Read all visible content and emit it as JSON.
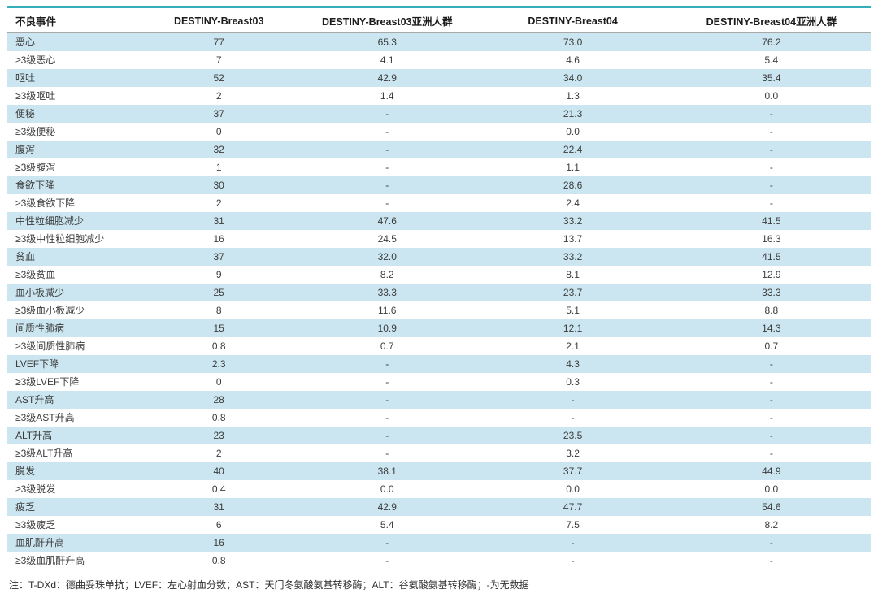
{
  "colors": {
    "accent_teal": "#35adbb",
    "bottom_rule_blue": "#8cc8db",
    "row_shade_blue": "#cbe6f0"
  },
  "table": {
    "columns": [
      "不良事件",
      "DESTINY-Breast03",
      "DESTINY-Breast03亚洲人群",
      "DESTINY-Breast04",
      "DESTINY-Breast04亚洲人群"
    ],
    "rows": [
      {
        "label": "恶心",
        "values": [
          "77",
          "65.3",
          "73.0",
          "76.2"
        ]
      },
      {
        "label": "≥3级恶心",
        "values": [
          "7",
          "4.1",
          "4.6",
          "5.4"
        ]
      },
      {
        "label": "呕吐",
        "values": [
          "52",
          "42.9",
          "34.0",
          "35.4"
        ]
      },
      {
        "label": "≥3级呕吐",
        "values": [
          "2",
          "1.4",
          "1.3",
          "0.0"
        ]
      },
      {
        "label": "便秘",
        "values": [
          "37",
          "-",
          "21.3",
          "-"
        ]
      },
      {
        "label": "≥3级便秘",
        "values": [
          "0",
          "-",
          "0.0",
          "-"
        ]
      },
      {
        "label": "腹泻",
        "values": [
          "32",
          "-",
          "22.4",
          "-"
        ]
      },
      {
        "label": "≥3级腹泻",
        "values": [
          "1",
          "-",
          "1.1",
          "-"
        ]
      },
      {
        "label": "食欲下降",
        "values": [
          "30",
          "-",
          "28.6",
          "-"
        ]
      },
      {
        "label": "≥3级食欲下降",
        "values": [
          "2",
          "-",
          "2.4",
          "-"
        ]
      },
      {
        "label": "中性粒细胞减少",
        "values": [
          "31",
          "47.6",
          "33.2",
          "41.5"
        ]
      },
      {
        "label": "≥3级中性粒细胞减少",
        "values": [
          "16",
          "24.5",
          "13.7",
          "16.3"
        ]
      },
      {
        "label": "贫血",
        "values": [
          "37",
          "32.0",
          "33.2",
          "41.5"
        ]
      },
      {
        "label": "≥3级贫血",
        "values": [
          "9",
          "8.2",
          "8.1",
          "12.9"
        ]
      },
      {
        "label": "血小板减少",
        "values": [
          "25",
          "33.3",
          "23.7",
          "33.3"
        ]
      },
      {
        "label": "≥3级血小板减少",
        "values": [
          "8",
          "11.6",
          "5.1",
          "8.8"
        ]
      },
      {
        "label": "间质性肺病",
        "values": [
          "15",
          "10.9",
          "12.1",
          "14.3"
        ]
      },
      {
        "label": "≥3级间质性肺病",
        "values": [
          "0.8",
          "0.7",
          "2.1",
          "0.7"
        ]
      },
      {
        "label": "LVEF下降",
        "values": [
          "2.3",
          "-",
          "4.3",
          "-"
        ]
      },
      {
        "label": "≥3级LVEF下降",
        "values": [
          "0",
          "-",
          "0.3",
          "-"
        ]
      },
      {
        "label": "AST升高",
        "values": [
          "28",
          "-",
          "-",
          "-"
        ]
      },
      {
        "label": "≥3级AST升高",
        "values": [
          "0.8",
          "-",
          "-",
          "-"
        ]
      },
      {
        "label": "ALT升高",
        "values": [
          "23",
          "-",
          "23.5",
          "-"
        ]
      },
      {
        "label": "≥3级ALT升高",
        "values": [
          "2",
          "-",
          "3.2",
          "-"
        ]
      },
      {
        "label": "脱发",
        "values": [
          "40",
          "38.1",
          "37.7",
          "44.9"
        ]
      },
      {
        "label": "≥3级脱发",
        "values": [
          "0.4",
          "0.0",
          "0.0",
          "0.0"
        ]
      },
      {
        "label": "疲乏",
        "values": [
          "31",
          "42.9",
          "47.7",
          "54.6"
        ]
      },
      {
        "label": "≥3级疲乏",
        "values": [
          "6",
          "5.4",
          "7.5",
          "8.2"
        ]
      },
      {
        "label": "血肌酐升高",
        "values": [
          "16",
          "-",
          "-",
          "-"
        ]
      },
      {
        "label": "≥3级血肌酐升高",
        "values": [
          "0.8",
          "-",
          "-",
          "-"
        ]
      }
    ]
  },
  "footnote": "注：T-DXd：德曲妥珠单抗；LVEF：左心射血分数；AST：天门冬氨酸氨基转移酶；ALT：谷氨酸氨基转移酶；-为无数据"
}
